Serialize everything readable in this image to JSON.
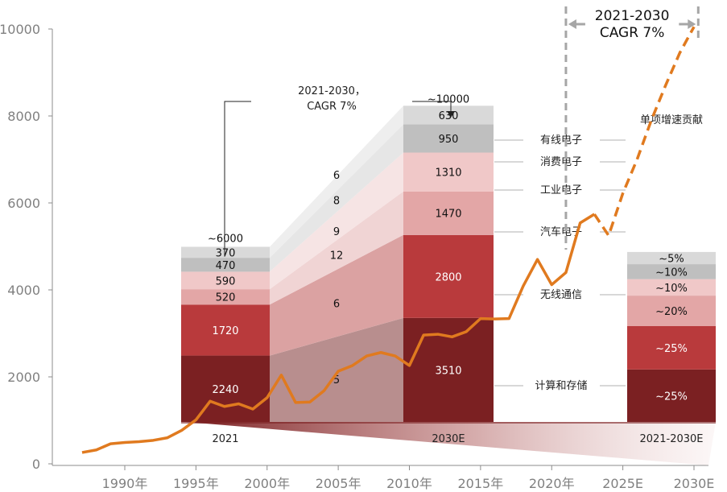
{
  "chart_data": {
    "type": "bar",
    "title": "",
    "xlabel": "",
    "ylabel": "",
    "ylim": [
      0,
      10000
    ],
    "y_ticks": [
      "0",
      "2000",
      "4000",
      "6000",
      "8000",
      "10000"
    ],
    "x_ticks": [
      "1990年",
      "1995年",
      "2000年",
      "2005年",
      "2010年",
      "2015年",
      "2020年",
      "2025E",
      "2030E"
    ],
    "grid": false,
    "categories": [
      "2021",
      "2030E",
      "2021-2030E"
    ],
    "series": [
      {
        "name": "计算和存储",
        "color": "#7b2022",
        "values": [
          2240,
          3510,
          null
        ],
        "labels": [
          "2240",
          "3510",
          "~25%"
        ]
      },
      {
        "name": "无线通信",
        "color": "#b93a3c",
        "values": [
          1720,
          2800,
          null
        ],
        "labels": [
          "1720",
          "2800",
          "~25%"
        ]
      },
      {
        "name": "汽车电子",
        "color": "#e3a6a6",
        "values": [
          520,
          1470,
          null
        ],
        "labels": [
          "520",
          "1470",
          "~20%"
        ]
      },
      {
        "name": "工业电子",
        "color": "#f0c8c8",
        "values": [
          590,
          1310,
          null
        ],
        "labels": [
          "590",
          "1310",
          "~10%"
        ]
      },
      {
        "name": "消费电子",
        "color": "#bfbfbf",
        "values": [
          470,
          950,
          null
        ],
        "labels": [
          "470",
          "950",
          "~10%"
        ]
      },
      {
        "name": "有线电子",
        "color": "#d9d9d9",
        "values": [
          370,
          630,
          null
        ],
        "labels": [
          "370",
          "630",
          "~5%"
        ]
      }
    ],
    "totals": [
      "~6000",
      "~10000"
    ],
    "growth_labels": [
      "5",
      "6",
      "12",
      "9",
      "8",
      "6"
    ],
    "contribution_header": "单项增速贡献",
    "cagr_note": "2021-2030，\nCAGR  7%",
    "cagr_top": "2021-2030\nCAGR 7%",
    "line": {
      "color": "#e07a1f",
      "x": [
        1987,
        1988,
        1989,
        1990,
        1991,
        1992,
        1993,
        1994,
        1995,
        1996,
        1997,
        1998,
        1999,
        2000,
        2001,
        2002,
        2003,
        2004,
        2005,
        2006,
        2007,
        2008,
        2009,
        2010,
        2011,
        2012,
        2013,
        2014,
        2015,
        2016,
        2017,
        2018,
        2019,
        2020,
        2021,
        2022,
        2023
      ],
      "y": [
        260,
        320,
        460,
        490,
        510,
        540,
        600,
        770,
        1010,
        1440,
        1320,
        1380,
        1260,
        1520,
        2040,
        1410,
        1420,
        1680,
        2130,
        2260,
        2480,
        2560,
        2480,
        2260,
        2960,
        2980,
        2920,
        3040,
        3340,
        3330,
        3340,
        4090,
        4700,
        4120,
        4400,
        5540,
        5740
      ],
      "forecast_x": [
        2023,
        2024,
        2025,
        2026,
        2027,
        2028,
        2029,
        2030
      ],
      "forecast_y": [
        5740,
        5250,
        6220,
        7000,
        7900,
        8700,
        9450,
        10050
      ]
    }
  }
}
